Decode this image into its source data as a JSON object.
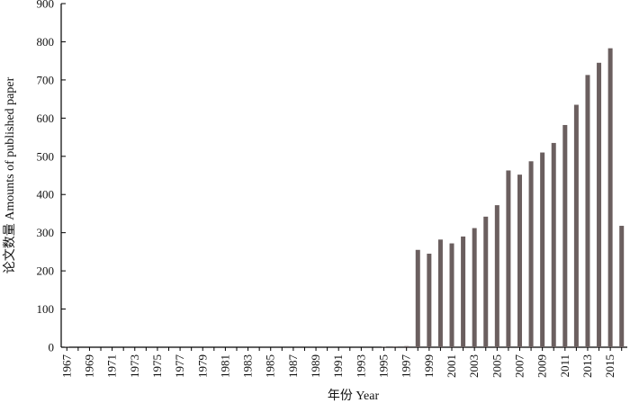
{
  "chart_data": {
    "type": "bar",
    "xlabel": "年份 Year",
    "ylabel": "论文数量 Amounts of published paper",
    "ylim": [
      0,
      900
    ],
    "yticks": [
      0,
      100,
      200,
      300,
      400,
      500,
      600,
      700,
      800,
      900
    ],
    "grid": false,
    "bar_color": "#6b5f5f",
    "categories": [
      1967,
      1968,
      1969,
      1970,
      1971,
      1972,
      1973,
      1974,
      1975,
      1976,
      1977,
      1978,
      1979,
      1980,
      1981,
      1982,
      1983,
      1984,
      1985,
      1986,
      1987,
      1988,
      1989,
      1990,
      1991,
      1992,
      1993,
      1994,
      1995,
      1996,
      1997,
      1998,
      1999,
      2000,
      2001,
      2002,
      2003,
      2004,
      2005,
      2006,
      2007,
      2008,
      2009,
      2010,
      2011,
      2012,
      2013,
      2014,
      2015,
      2016
    ],
    "xtick_labels": [
      "1967",
      "1969",
      "1971",
      "1973",
      "1975",
      "1977",
      "1979",
      "1981",
      "1983",
      "1985",
      "1987",
      "1989",
      "1991",
      "1993",
      "1995",
      "1997",
      "1999",
      "2001",
      "2003",
      "2005",
      "2007",
      "2009",
      "2011",
      "2013",
      "2015"
    ],
    "values": [
      1,
      0,
      0,
      0,
      0,
      0,
      0,
      0,
      0,
      0,
      0,
      0,
      0,
      0,
      0,
      0,
      0,
      0,
      0,
      0,
      0,
      0,
      0,
      0,
      0,
      0,
      0,
      0,
      1,
      2,
      3,
      255,
      245,
      282,
      272,
      290,
      312,
      342,
      372,
      463,
      452,
      487,
      510,
      535,
      582,
      635,
      713,
      745,
      783,
      318
    ]
  }
}
